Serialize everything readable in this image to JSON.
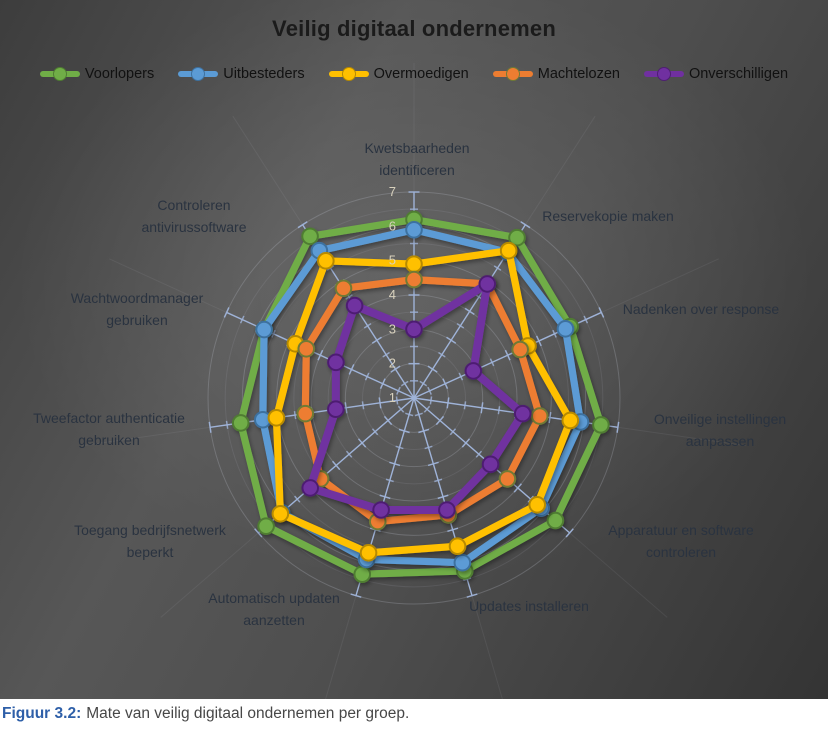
{
  "title": "Veilig digitaal ondernemen",
  "caption": {
    "prefix": "Figuur 3.2:",
    "text": "Mate van veilig digitaal ondernemen per groep."
  },
  "colors": {
    "background_dark": "#4e4e4e",
    "spoke": "#9FB3D8",
    "radial_value_labels": "#D8D1BD",
    "category_labels": "#2A3340",
    "caption_accent": "#2E5FA8"
  },
  "chart_data": {
    "type": "radar",
    "title": "Veilig digitaal ondernemen",
    "axis": {
      "min": 1,
      "max": 7,
      "major_unit": 1,
      "tick_labels": [
        1,
        2,
        3,
        4,
        5,
        6,
        7
      ]
    },
    "grid": "circular rings with tick marks on spokes",
    "legend_position": "top",
    "categories": [
      [
        "Kwetsbaarheden",
        "identificeren"
      ],
      [
        "Reservekopie maken"
      ],
      [
        "Nadenken over response"
      ],
      [
        "Onveilige instellingen",
        "aanpassen"
      ],
      [
        "Apparatuur en software",
        "controleren"
      ],
      [
        "Updates installeren"
      ],
      [
        "Automatisch updaten",
        "aanzetten"
      ],
      [
        "Toegang bedrijfsnetwerk",
        "beperkt"
      ],
      [
        "Tweefactor authenticatie",
        "gebruiken"
      ],
      [
        "Wachtwoordmanager",
        "gebruiken"
      ],
      [
        "Controleren",
        "antivirussoftware"
      ]
    ],
    "series": [
      {
        "name": "Voorlopers",
        "color": "#70AD47",
        "marker_edge": "#4F7D31",
        "values": [
          6.2,
          6.55,
          6.0,
          6.5,
          6.45,
          6.25,
          6.35,
          6.7,
          6.1,
          5.8,
          6.6
        ]
      },
      {
        "name": "Uitbesteders",
        "color": "#5B9BD5",
        "marker_edge": "#3E719F",
        "values": [
          5.9,
          6.05,
          5.85,
          5.9,
          5.9,
          6.0,
          5.9,
          6.1,
          5.45,
          5.8,
          6.1
        ]
      },
      {
        "name": "Overmoedigen",
        "color": "#FFC000",
        "marker_edge": "#B78A00",
        "values": [
          4.9,
          6.1,
          4.65,
          5.6,
          5.75,
          5.5,
          5.7,
          6.15,
          5.05,
          4.8,
          5.75
        ]
      },
      {
        "name": "Machtelozen",
        "color": "#ED7D31",
        "marker_edge": "#6F7A35",
        "values": [
          4.45,
          4.95,
          4.4,
          4.7,
          4.6,
          4.55,
          4.75,
          4.6,
          4.2,
          4.45,
          4.8
        ]
      },
      {
        "name": "Onverschilligen",
        "color": "#7030A0",
        "marker_edge": "#4E1F72",
        "values": [
          3.0,
          4.95,
          2.9,
          4.2,
          3.95,
          4.4,
          4.4,
          5.0,
          3.3,
          3.5,
          4.2
        ]
      }
    ]
  }
}
